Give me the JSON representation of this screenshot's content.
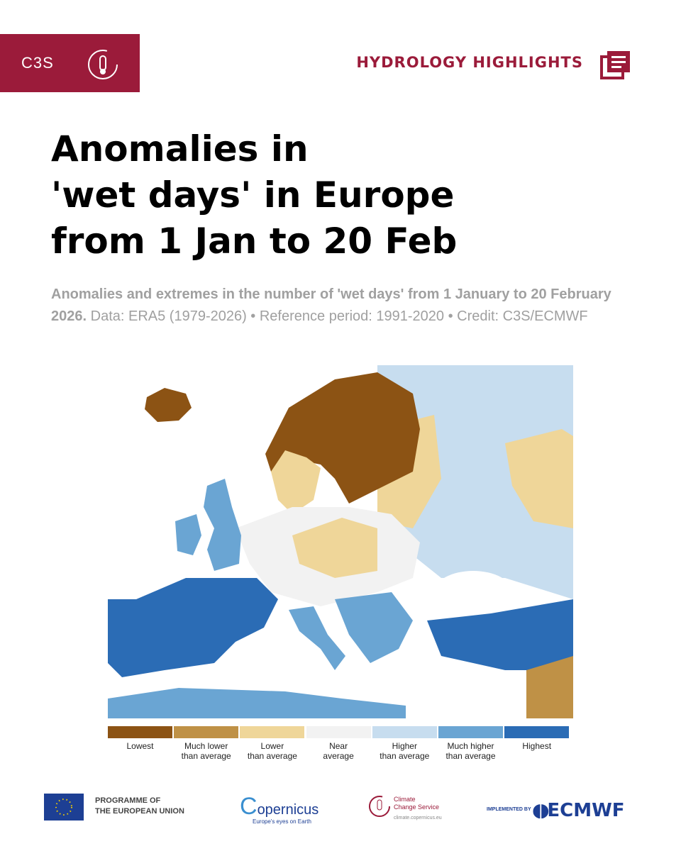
{
  "header": {
    "badge": "C3S",
    "section": "HYDROLOGY HIGHLIGHTS"
  },
  "title": [
    "Anomalies in",
    "'wet days' in Europe",
    "from 1 Jan to 20 Feb"
  ],
  "subtitle": {
    "bold": "Anomalies and extremes in the number of 'wet days' from 1 January to 20 February 2026.",
    "rest": "Data: ERA5 (1979-2026) • Reference period: 1991-2020 • Credit: C3S/ECMWF"
  },
  "legend": [
    {
      "color": "#8c5314",
      "label": [
        "Lowest"
      ]
    },
    {
      "color": "#bf9146",
      "label": [
        "Much lower",
        "than average"
      ]
    },
    {
      "color": "#efd699",
      "label": [
        "Lower",
        "than average"
      ]
    },
    {
      "color": "#f2f2f2",
      "label": [
        "Near",
        "average"
      ]
    },
    {
      "color": "#c7ddef",
      "label": [
        "Higher",
        "than average"
      ]
    },
    {
      "color": "#6aa5d3",
      "label": [
        "Much higher",
        "than average"
      ]
    },
    {
      "color": "#2b6cb5",
      "label": [
        "Highest"
      ]
    }
  ],
  "footer": {
    "eu": [
      "PROGRAMME OF",
      "THE EUROPEAN UNION"
    ],
    "copernicus": "opernicus",
    "copernicus_tagline": "Europe's eyes on Earth",
    "c3s": [
      "Climate",
      "Change Service"
    ],
    "c3s_url": "climate.copernicus.eu",
    "implemented": "IMPLEMENTED BY",
    "ecmwf": "ECMWF"
  }
}
